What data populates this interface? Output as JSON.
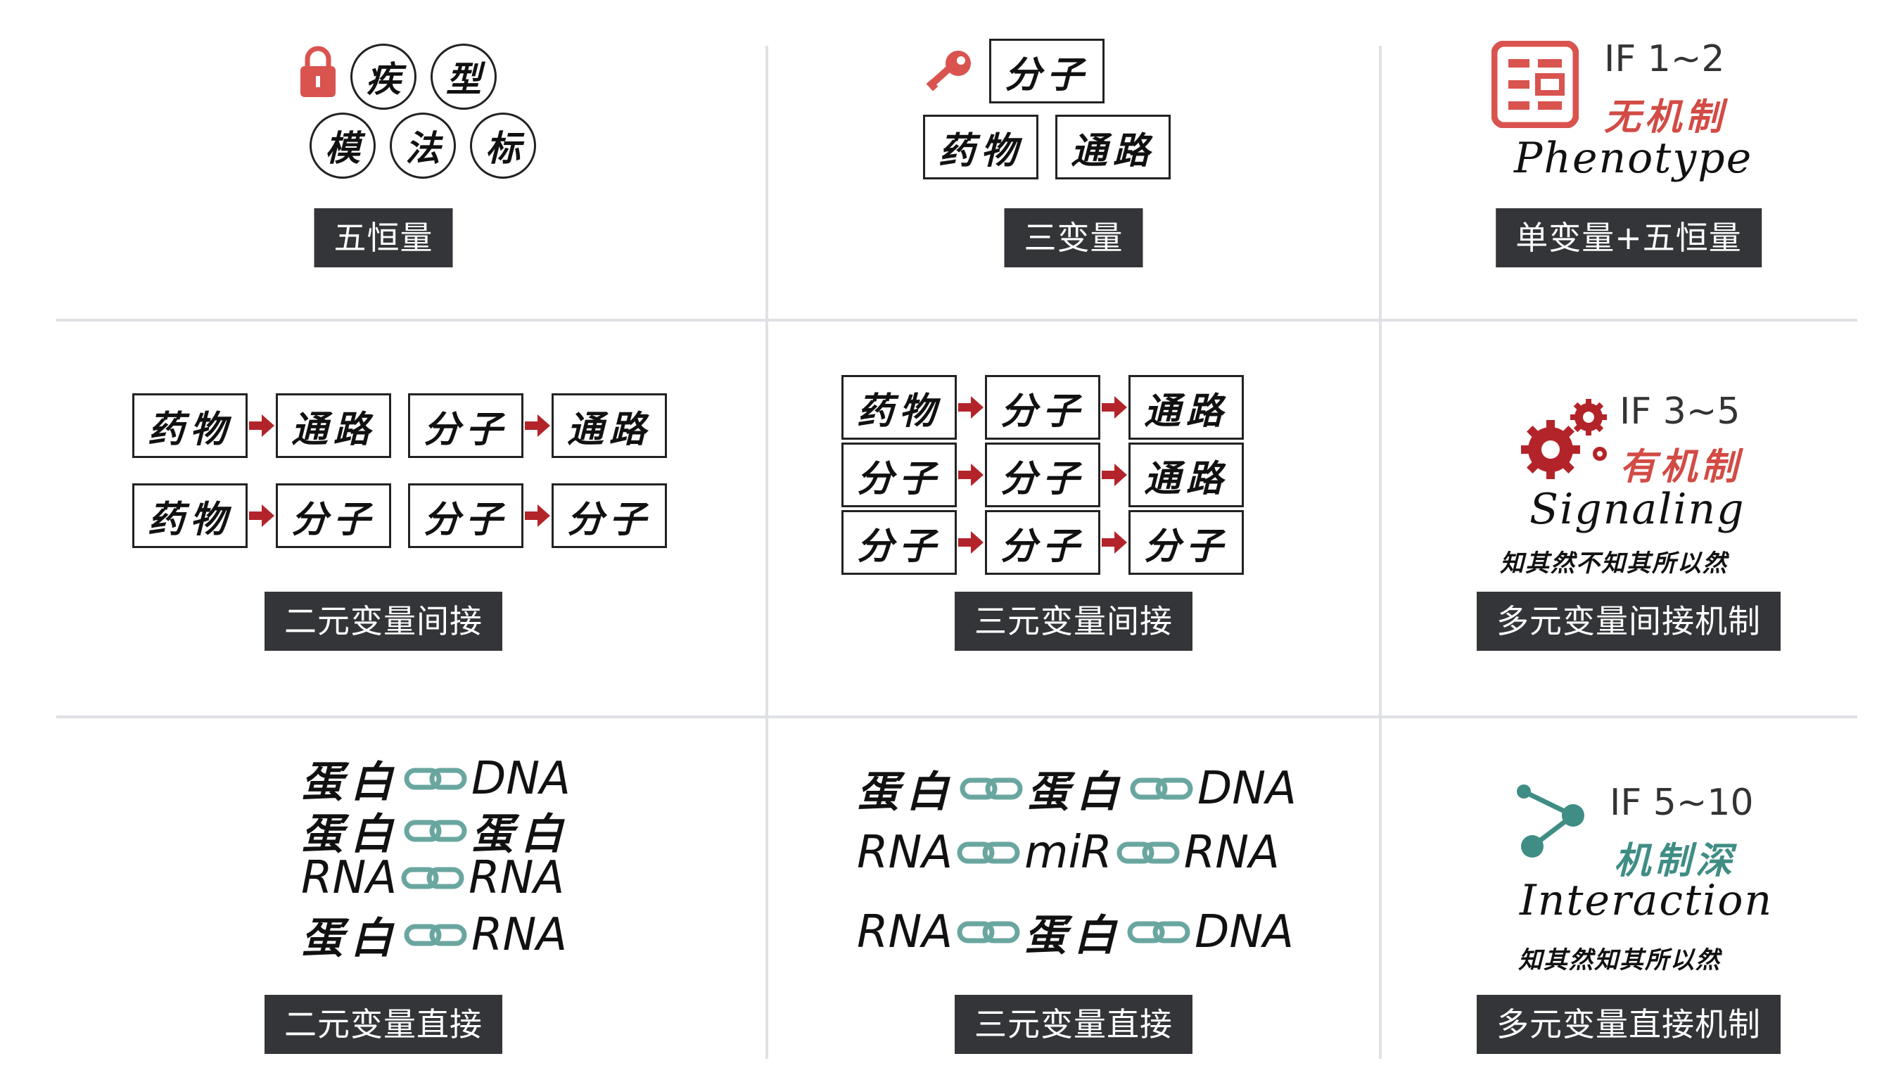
{
  "colors": {
    "caption_bg": "#333538",
    "accent_red": "#d9534f",
    "arrow_red": "#b3242a",
    "chain_teal": "#6aa6a0",
    "mech_red": "#d24b45",
    "mech_green": "#3f8d84",
    "grid": "#dfe1e5"
  },
  "cells": {
    "r1c1": {
      "icon": "lock-icon",
      "circles": [
        "疾",
        "型",
        "模",
        "法",
        "标"
      ],
      "caption": "五恒量"
    },
    "r1c2": {
      "icon": "key-icon",
      "boxes_top": [
        "分子"
      ],
      "boxes_bottom": [
        "药物",
        "通路"
      ],
      "caption": "三变量"
    },
    "r1c3": {
      "icon": "data-book-icon",
      "if": "IF 1~2",
      "mechanism": "无机制",
      "english": "Phenotype",
      "caption": "单变量+五恒量"
    },
    "r2c1": {
      "rows": [
        [
          [
            "药物",
            "通路"
          ],
          [
            "分子",
            "通路"
          ]
        ],
        [
          [
            "药物",
            "分子"
          ],
          [
            "分子",
            "分子"
          ]
        ]
      ],
      "caption": "二元变量间接"
    },
    "r2c2": {
      "rows": [
        [
          "药物",
          "分子",
          "通路"
        ],
        [
          "分子",
          "分子",
          "通路"
        ],
        [
          "分子",
          "分子",
          "分子"
        ]
      ],
      "caption": "三元变量间接"
    },
    "r2c3": {
      "icon": "gears-icon",
      "if": "IF 3~5",
      "mechanism": "有机制",
      "english": "Signaling",
      "proverb": "知其然不知其所以然",
      "caption": "多元变量间接机制"
    },
    "r3c1": {
      "lines": [
        [
          "蛋白",
          "DNA"
        ],
        [
          "蛋白",
          "蛋白"
        ],
        [
          "RNA",
          "RNA"
        ],
        [
          "蛋白",
          "RNA"
        ]
      ],
      "caption": "二元变量直接"
    },
    "r3c2": {
      "lines": [
        [
          "蛋白",
          "蛋白",
          "DNA"
        ],
        [
          "RNA",
          "miR",
          "RNA"
        ],
        [
          "RNA",
          "蛋白",
          "DNA"
        ]
      ],
      "caption": "三元变量直接"
    },
    "r3c3": {
      "icon": "molecule-icon",
      "if": "IF 5~10",
      "mechanism": "机制深",
      "english": "Interaction",
      "proverb": "知其然知其所以然",
      "caption": "多元变量直接机制"
    }
  }
}
